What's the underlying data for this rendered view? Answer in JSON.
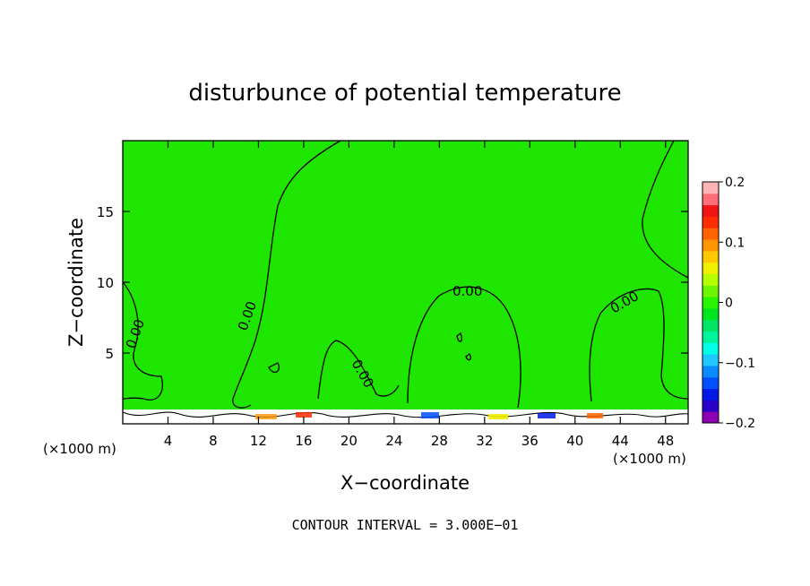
{
  "chart_data": {
    "type": "heatmap",
    "title": "disturbunce of potential temperature",
    "xlabel": "X−coordinate",
    "ylabel": "Z−coordinate",
    "x_unit_label": "(×1000 m)",
    "z_unit_label": "(×1000 m)",
    "xlim": [
      0,
      50
    ],
    "ylim": [
      0,
      20
    ],
    "x_ticks": [
      4,
      8,
      12,
      16,
      20,
      24,
      28,
      32,
      36,
      40,
      44,
      48
    ],
    "y_ticks": [
      5,
      10,
      15
    ],
    "field_value_background": 0.0,
    "contour_labels": [
      "0.00",
      "0.00",
      "0.00",
      "0.00",
      "0.00"
    ],
    "contour_interval_text": "CONTOUR INTERVAL = 3.000E−01",
    "colorbar": {
      "min": -0.2,
      "max": 0.2,
      "tick_values": [
        0.2,
        0.1,
        0,
        -0.1,
        -0.2
      ],
      "tick_labels": [
        "0.2",
        "0.1",
        "0",
        "−0.1",
        "−0.2"
      ],
      "colors": [
        "#8e00b4",
        "#2a00c8",
        "#0019e6",
        "#0050ff",
        "#0a8cff",
        "#1ec8ff",
        "#00ffe6",
        "#00f59b",
        "#00e664",
        "#00e61e",
        "#28f500",
        "#6ef500",
        "#b4ff00",
        "#f0f000",
        "#ffc800",
        "#ff9600",
        "#ff6400",
        "#ff2d00",
        "#f01414",
        "#ff6e78",
        "#ffb4b4"
      ]
    },
    "background_color": "#1ee600"
  }
}
